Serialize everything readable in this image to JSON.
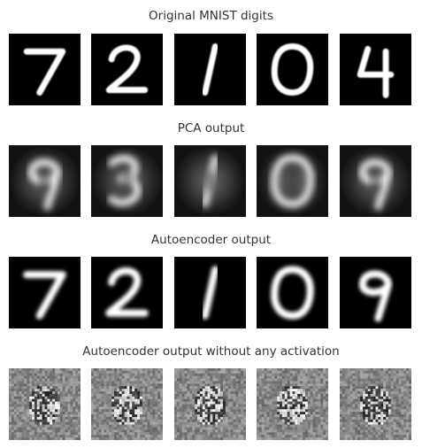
{
  "rows": [
    {
      "title": "Original MNIST digits",
      "style": "sharp",
      "digits": [
        "7",
        "2",
        "1",
        "0",
        "4"
      ]
    },
    {
      "title": "PCA output",
      "style": "pca",
      "digits": [
        "9",
        "3",
        "1",
        "0",
        "9"
      ]
    },
    {
      "title": "Autoencoder output",
      "style": "blurred",
      "digits": [
        "7",
        "2",
        "1",
        "0",
        "9"
      ]
    },
    {
      "title": "Autoencoder output without any activation",
      "style": "noise",
      "digits": [
        "",
        "",
        "",
        "",
        ""
      ]
    }
  ],
  "colors": {
    "background": "#ffffff",
    "title_text": "#333333",
    "tile_background": "#000000",
    "stroke": "#ffffff",
    "noise_gray": "#8a8a8a"
  }
}
